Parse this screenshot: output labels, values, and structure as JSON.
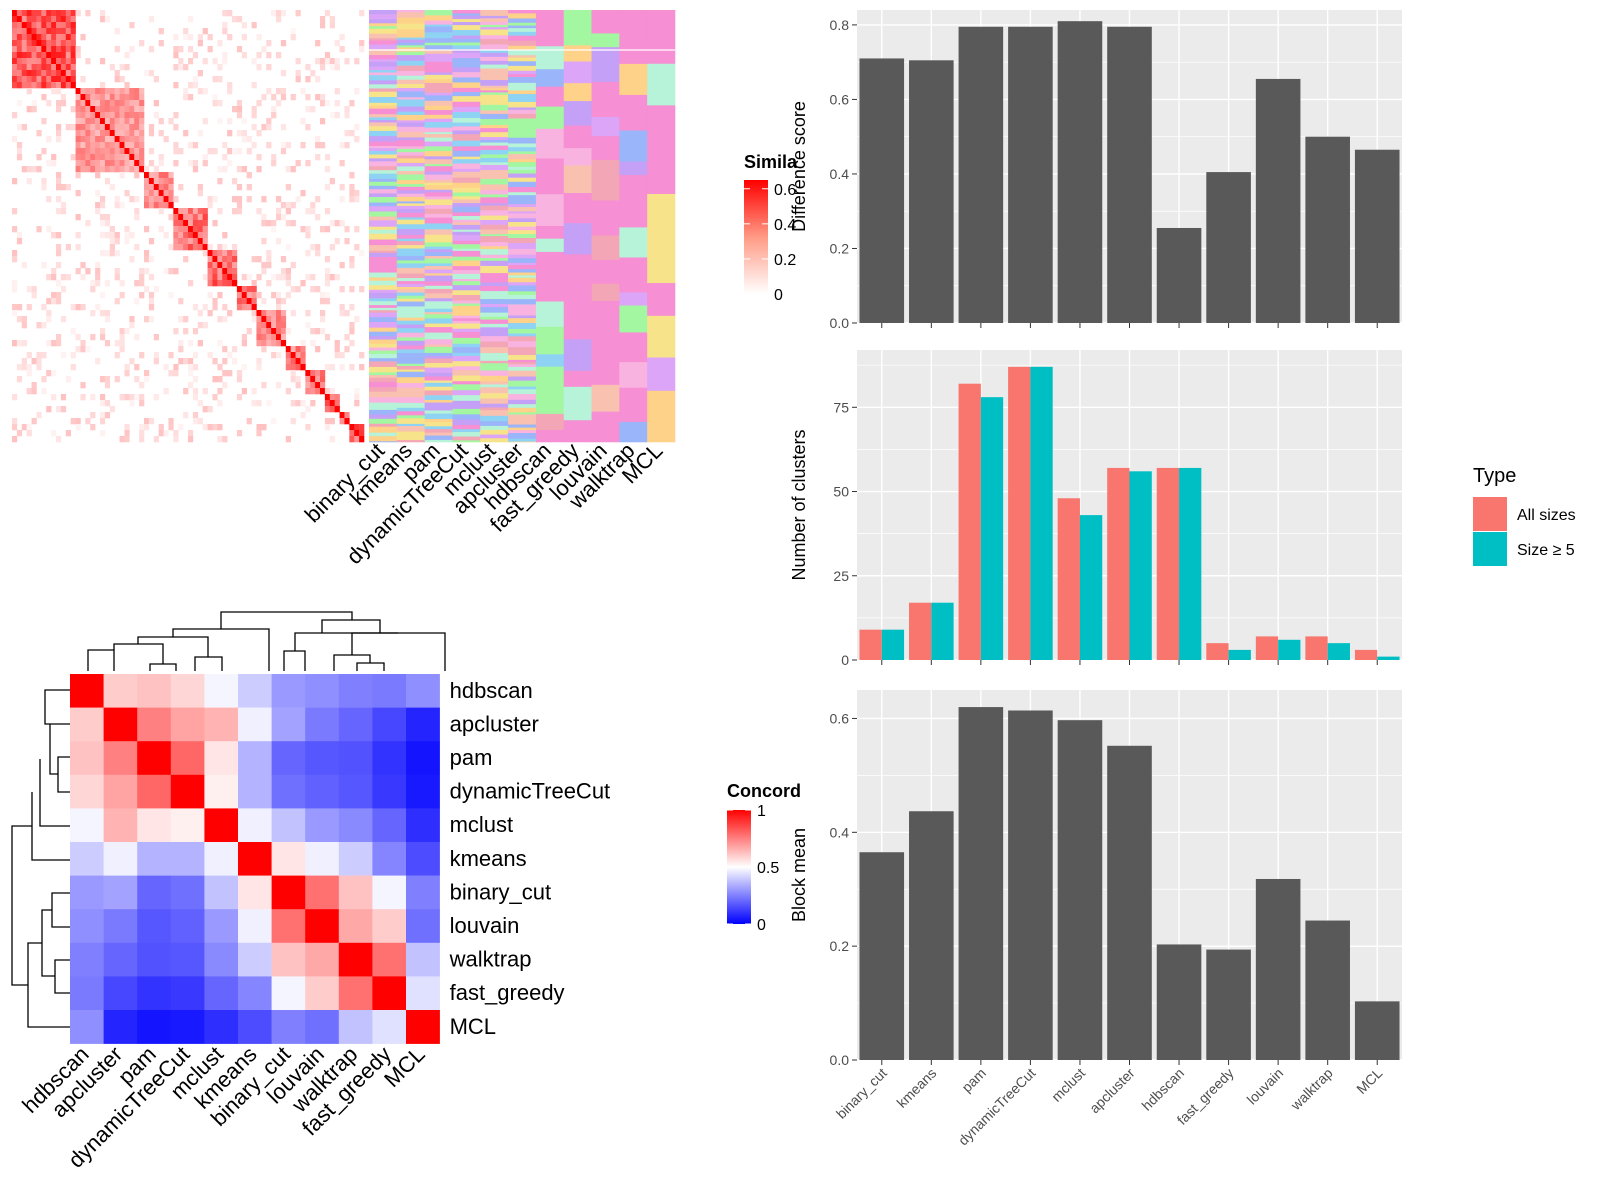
{
  "chart_data": [
    {
      "id": "similarity-heatmap",
      "type": "heatmap",
      "legend_title": "Simila",
      "legend_ticks": [
        "0.6",
        "0.4",
        "0.2",
        "0"
      ],
      "legend_values": [
        0.6,
        0.4,
        0.2,
        0
      ],
      "legend_colors": [
        "#ff0000",
        "#ffffff"
      ],
      "column_labels": [
        "binary_cut",
        "kmeans",
        "pam",
        "dynamicTreeCut",
        "mclust",
        "apcluster",
        "hdbscan",
        "fast_greedy",
        "louvain",
        "walktrap",
        "MCL"
      ]
    },
    {
      "id": "concordance-heatmap",
      "type": "heatmap",
      "legend_title": "Concord",
      "legend_ticks": [
        "1",
        "0.5",
        "0"
      ],
      "legend_values": [
        1,
        0.5,
        0
      ],
      "legend_colors": [
        "#0000ff",
        "#ffffff",
        "#ff0000"
      ],
      "labels": [
        "hdbscan",
        "apcluster",
        "pam",
        "dynamicTreeCut",
        "mclust",
        "kmeans",
        "binary_cut",
        "louvain",
        "walktrap",
        "fast_greedy",
        "MCL"
      ],
      "matrix": [
        [
          1.0,
          0.6,
          0.62,
          0.58,
          0.48,
          0.4,
          0.3,
          0.28,
          0.25,
          0.24,
          0.28
        ],
        [
          0.6,
          1.0,
          0.75,
          0.68,
          0.65,
          0.47,
          0.32,
          0.24,
          0.2,
          0.14,
          0.07
        ],
        [
          0.62,
          0.75,
          1.0,
          0.8,
          0.55,
          0.35,
          0.2,
          0.17,
          0.16,
          0.1,
          0.04
        ],
        [
          0.58,
          0.68,
          0.8,
          1.0,
          0.53,
          0.35,
          0.22,
          0.19,
          0.17,
          0.11,
          0.05
        ],
        [
          0.48,
          0.65,
          0.55,
          0.53,
          1.0,
          0.47,
          0.38,
          0.3,
          0.27,
          0.2,
          0.09
        ],
        [
          0.4,
          0.47,
          0.35,
          0.35,
          0.47,
          1.0,
          0.55,
          0.47,
          0.4,
          0.26,
          0.15
        ],
        [
          0.3,
          0.32,
          0.2,
          0.22,
          0.38,
          0.55,
          1.0,
          0.78,
          0.62,
          0.48,
          0.25
        ],
        [
          0.28,
          0.24,
          0.17,
          0.19,
          0.3,
          0.47,
          0.78,
          1.0,
          0.67,
          0.6,
          0.22
        ],
        [
          0.25,
          0.2,
          0.16,
          0.17,
          0.27,
          0.4,
          0.62,
          0.67,
          1.0,
          0.78,
          0.38
        ],
        [
          0.24,
          0.14,
          0.1,
          0.11,
          0.2,
          0.26,
          0.48,
          0.6,
          0.78,
          1.0,
          0.44
        ],
        [
          0.28,
          0.07,
          0.04,
          0.05,
          0.09,
          0.15,
          0.25,
          0.22,
          0.38,
          0.44,
          1.0
        ]
      ]
    },
    {
      "id": "difference-score",
      "type": "bar",
      "categories": [
        "binary_cut",
        "kmeans",
        "pam",
        "dynamicTreeCut",
        "mclust",
        "apcluster",
        "hdbscan",
        "fast_greedy",
        "louvain",
        "walktrap",
        "MCL"
      ],
      "values": [
        0.71,
        0.705,
        0.795,
        0.795,
        0.81,
        0.795,
        0.255,
        0.405,
        0.655,
        0.5,
        0.465
      ],
      "ylabel": "Difference score",
      "ylim": [
        0,
        0.84
      ],
      "yticks": [
        "0.0",
        "0.2",
        "0.4",
        "0.6",
        "0.8"
      ],
      "bar_color": "#595959",
      "panel_bg": "#ebebeb",
      "grid": true
    },
    {
      "id": "number-of-clusters",
      "type": "bar",
      "categories": [
        "binary_cut",
        "kmeans",
        "pam",
        "dynamicTreeCut",
        "mclust",
        "apcluster",
        "hdbscan",
        "fast_greedy",
        "louvain",
        "walktrap",
        "MCL"
      ],
      "series": [
        {
          "name": "All sizes",
          "color": "#f8766d",
          "values": [
            9,
            17,
            82,
            87,
            48,
            57,
            57,
            5,
            7,
            7,
            3
          ]
        },
        {
          "name": "Size ≥ 5",
          "color": "#00bfc4",
          "values": [
            9,
            17,
            78,
            87,
            43,
            56,
            57,
            3,
            6,
            5,
            1
          ]
        }
      ],
      "ylabel": "Number of clusters",
      "ylim": [
        0,
        92
      ],
      "yticks": [
        "0",
        "25",
        "50",
        "75"
      ],
      "legend_title": "Type",
      "legend_position": "right",
      "panel_bg": "#ebebeb",
      "grid": true
    },
    {
      "id": "block-mean",
      "type": "bar",
      "categories": [
        "binary_cut",
        "kmeans",
        "pam",
        "dynamicTreeCut",
        "mclust",
        "apcluster",
        "hdbscan",
        "fast_greedy",
        "louvain",
        "walktrap",
        "MCL"
      ],
      "values": [
        0.365,
        0.437,
        0.62,
        0.614,
        0.597,
        0.552,
        0.203,
        0.194,
        0.318,
        0.245,
        0.103
      ],
      "ylabel": "Block mean",
      "ylim": [
        0,
        0.65
      ],
      "yticks": [
        "0.0",
        "0.2",
        "0.4",
        "0.6"
      ],
      "bar_color": "#595959",
      "panel_bg": "#ebebeb",
      "grid": true
    }
  ]
}
